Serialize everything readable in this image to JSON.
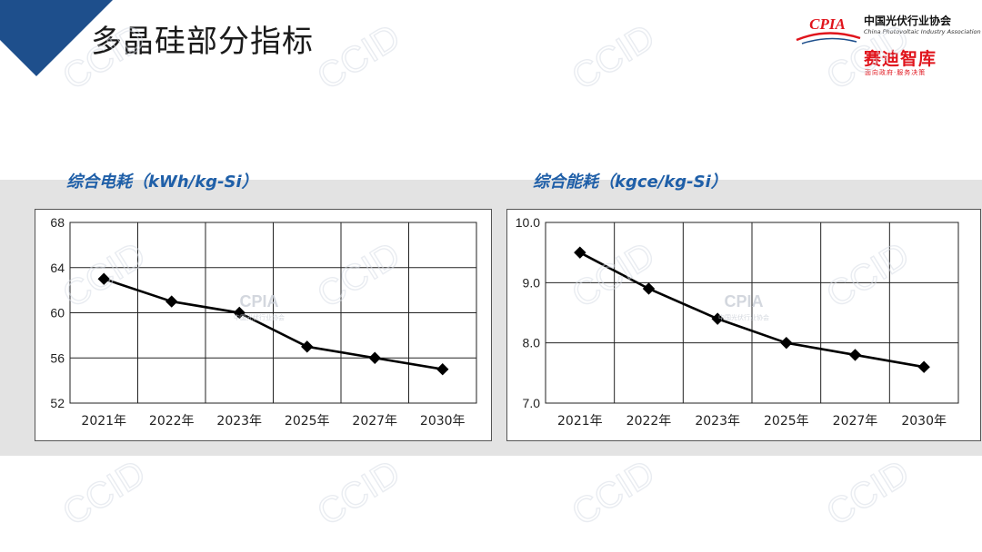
{
  "page": {
    "title": "多晶硅部分指标"
  },
  "logos": {
    "cpia_mark": "CPIA",
    "cpia_name": "中国光伏行业协会",
    "cpia_english": "China Photovoltaic Industry Association",
    "ccid_name": "赛迪智库",
    "ccid_slogan": "面向政府·服务决策"
  },
  "watermark": {
    "text": "CCID",
    "cpia_text": "CPIA",
    "cpia_sub": "中国光伏行业协会"
  },
  "colors": {
    "accent": "#1f5fa8",
    "corner": "#1e4f8c",
    "brand_red": "#e0141c",
    "band": "#e3e3e3"
  },
  "chart_data": [
    {
      "type": "line",
      "title": "综合电耗（kWh/kg-Si）",
      "categories": [
        "2021年",
        "2022年",
        "2023年",
        "2025年",
        "2027年",
        "2030年"
      ],
      "series": [
        {
          "values": [
            63,
            61,
            60,
            57,
            56,
            55
          ]
        }
      ],
      "ylim": [
        52,
        68
      ],
      "yticks": [
        "52",
        "56",
        "60",
        "64",
        "68"
      ],
      "grid": true,
      "marker": "diamond"
    },
    {
      "type": "line",
      "title": "综合能耗（kgce/kg-Si）",
      "categories": [
        "2021年",
        "2022年",
        "2023年",
        "2025年",
        "2027年",
        "2030年"
      ],
      "series": [
        {
          "values": [
            9.5,
            8.9,
            8.4,
            8.0,
            7.8,
            7.6
          ]
        }
      ],
      "ylim": [
        7.0,
        10.0
      ],
      "yticks": [
        "7.0",
        "8.0",
        "9.0",
        "10.0"
      ],
      "grid": true,
      "marker": "diamond"
    }
  ]
}
